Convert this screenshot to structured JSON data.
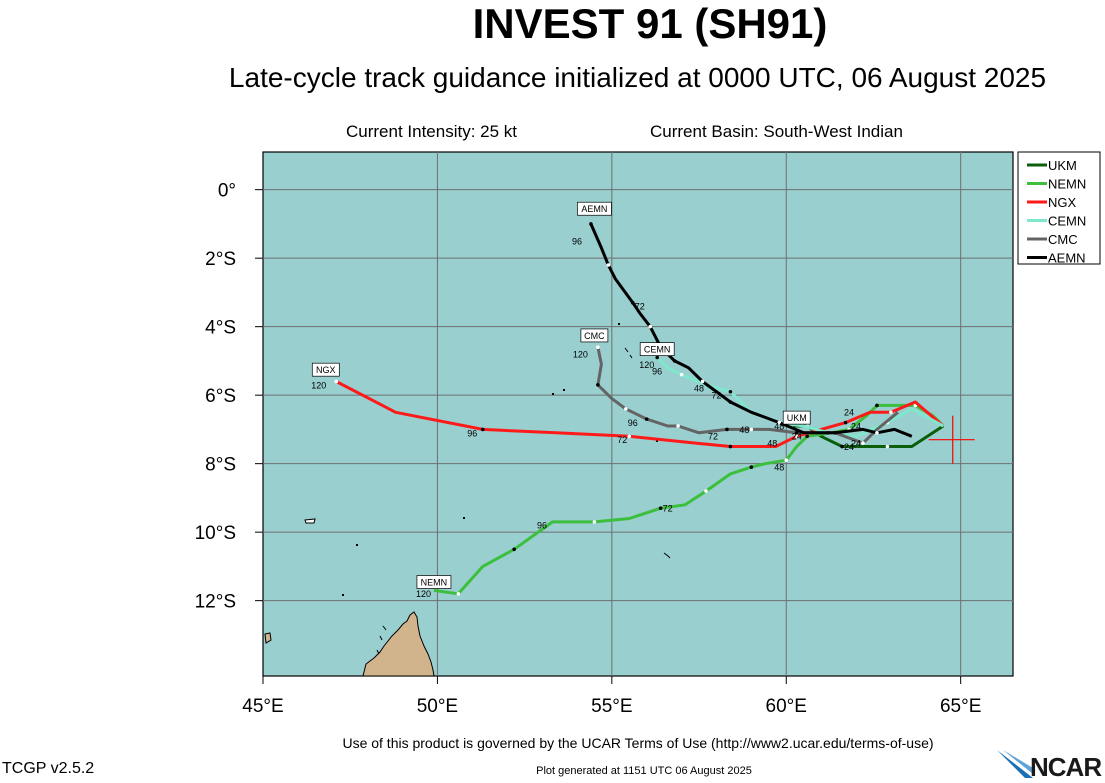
{
  "header": {
    "title": "INVEST 91 (SH91)",
    "subtitle": "Late-cycle track guidance initialized at 0000 UTC, 06 August 2025",
    "intensity": "Current Intensity: 25 kt",
    "basin": "Current Basin: South-West Indian"
  },
  "footer": {
    "terms": "Use of this product is governed by the UCAR Terms of Use (http://www2.ucar.edu/terms-of-use)",
    "version": "TCGP v2.5.2",
    "generated": "Plot generated at 1151 UTC   06 August 2025",
    "logo": "NCAR"
  },
  "colors": {
    "ocean": "#99cfcf",
    "land": "#d2b48c",
    "grid": "#6f6f6f",
    "cross": "#ff0000"
  },
  "chart_data": {
    "type": "line",
    "xlim": [
      45,
      66.5
    ],
    "ylim": [
      -14.2,
      1.1
    ],
    "x_ticks": [
      {
        "value": 45,
        "label": "45°E"
      },
      {
        "value": 50,
        "label": "50°E"
      },
      {
        "value": 55,
        "label": "55°E"
      },
      {
        "value": 60,
        "label": "60°E"
      },
      {
        "value": 65,
        "label": "65°E"
      }
    ],
    "y_ticks": [
      {
        "value": 0,
        "label": "0°"
      },
      {
        "value": -2,
        "label": "2°S"
      },
      {
        "value": -4,
        "label": "4°S"
      },
      {
        "value": -6,
        "label": "6°S"
      },
      {
        "value": -8,
        "label": "8°S"
      },
      {
        "value": -10,
        "label": "10°S"
      },
      {
        "value": -12,
        "label": "12°S"
      }
    ],
    "grid": true,
    "legend_position": "top-right",
    "current_position": {
      "lon": 64.6,
      "lat": -7.3
    },
    "series": [
      {
        "name": "UKM",
        "color": "#0b5e0b",
        "box_label": "UKM",
        "box_at": [
          60.3,
          -6.7
        ],
        "points": [
          [
            64.5,
            -6.9
          ],
          [
            63.6,
            -7.5
          ],
          [
            62.9,
            -7.5
          ],
          [
            62.3,
            -7.5
          ],
          [
            61.6,
            -7.5
          ],
          [
            61.0,
            -7.2
          ],
          [
            60.6,
            -6.9
          ],
          [
            60.2,
            -6.9
          ]
        ]
      },
      {
        "name": "NEMN",
        "color": "#3cbf3c",
        "box_label": "NEMN",
        "box_at": [
          49.9,
          -11.5
        ],
        "points": [
          [
            64.5,
            -6.9
          ],
          [
            64.2,
            -6.6
          ],
          [
            63.7,
            -6.3
          ],
          [
            63.1,
            -6.3
          ],
          [
            62.6,
            -6.3
          ],
          [
            62.3,
            -6.6
          ],
          [
            61.8,
            -7.0
          ],
          [
            61.3,
            -7.1
          ],
          [
            60.6,
            -7.2
          ],
          [
            60.3,
            -7.5
          ],
          [
            60.0,
            -7.9
          ],
          [
            59.4,
            -8.0
          ],
          [
            59.0,
            -8.1
          ],
          [
            58.4,
            -8.3
          ],
          [
            57.7,
            -8.8
          ],
          [
            57.1,
            -9.2
          ],
          [
            56.4,
            -9.3
          ],
          [
            55.5,
            -9.6
          ],
          [
            54.5,
            -9.7
          ],
          [
            53.3,
            -9.7
          ],
          [
            52.2,
            -10.5
          ],
          [
            51.3,
            -11.0
          ],
          [
            50.6,
            -11.8
          ],
          [
            49.9,
            -11.7
          ]
        ],
        "labels": [
          {
            "text": "24",
            "at": [
              61.8,
              -7.6
            ]
          },
          {
            "text": "48",
            "at": [
              59.8,
              -8.2
            ]
          },
          {
            "text": "72",
            "at": [
              56.6,
              -9.4
            ]
          },
          {
            "text": "96",
            "at": [
              53.0,
              -9.9
            ]
          },
          {
            "text": "120",
            "at": [
              49.6,
              -11.9
            ]
          }
        ]
      },
      {
        "name": "NGX",
        "color": "#ff1a1a",
        "box_label": "NGX",
        "box_at": [
          46.8,
          -5.3
        ],
        "points": [
          [
            64.5,
            -6.9
          ],
          [
            63.7,
            -6.2
          ],
          [
            63.0,
            -6.5
          ],
          [
            62.4,
            -6.5
          ],
          [
            61.7,
            -6.8
          ],
          [
            61.0,
            -7.0
          ],
          [
            60.3,
            -7.2
          ],
          [
            59.7,
            -7.5
          ],
          [
            58.4,
            -7.5
          ],
          [
            57.4,
            -7.4
          ],
          [
            55.5,
            -7.2
          ],
          [
            53.4,
            -7.1
          ],
          [
            51.3,
            -7.0
          ],
          [
            48.8,
            -6.5
          ],
          [
            47.1,
            -5.6
          ]
        ],
        "labels": [
          {
            "text": "24",
            "at": [
              60.3,
              -7.3
            ]
          },
          {
            "text": "48",
            "at": [
              59.6,
              -7.5
            ]
          },
          {
            "text": "72",
            "at": [
              55.3,
              -7.4
            ]
          },
          {
            "text": "96",
            "at": [
              51.0,
              -7.2
            ]
          },
          {
            "text": "120",
            "at": [
              46.6,
              -5.8
            ]
          }
        ]
      },
      {
        "name": "CEMN",
        "color": "#7fe8cc",
        "box_label": "CEMN",
        "box_at": [
          56.3,
          -4.7
        ],
        "points": [
          [
            64.5,
            -6.9
          ],
          [
            63.6,
            -6.4
          ],
          [
            62.9,
            -6.8
          ],
          [
            62.0,
            -7.2
          ],
          [
            61.2,
            -7.1
          ],
          [
            60.5,
            -6.9
          ],
          [
            59.8,
            -6.8
          ],
          [
            59.0,
            -6.5
          ],
          [
            58.4,
            -5.9
          ],
          [
            57.7,
            -5.7
          ],
          [
            57.0,
            -5.4
          ],
          [
            56.6,
            -5.2
          ],
          [
            56.3,
            -4.9
          ]
        ],
        "labels": [
          {
            "text": "24",
            "at": [
              62.0,
              -7.0
            ]
          },
          {
            "text": "48",
            "at": [
              57.5,
              -5.9
            ]
          },
          {
            "text": "72",
            "at": [
              58.0,
              -6.1
            ]
          },
          {
            "text": "96",
            "at": [
              56.3,
              -5.4
            ]
          },
          {
            "text": "120",
            "at": [
              56.0,
              -5.2
            ]
          }
        ]
      },
      {
        "name": "CMC",
        "color": "#646464",
        "box_label": "CMC",
        "box_at": [
          54.5,
          -4.3
        ],
        "points": [
          [
            63.2,
            -6.5
          ],
          [
            62.6,
            -7.0
          ],
          [
            62.2,
            -7.4
          ],
          [
            61.4,
            -7.1
          ],
          [
            60.3,
            -7.1
          ],
          [
            59.5,
            -7.0
          ],
          [
            59.0,
            -7.0
          ],
          [
            58.8,
            -7.0
          ],
          [
            58.3,
            -7.0
          ],
          [
            57.5,
            -7.1
          ],
          [
            56.9,
            -6.9
          ],
          [
            56.6,
            -6.9
          ],
          [
            56.0,
            -6.7
          ],
          [
            55.8,
            -6.6
          ],
          [
            55.4,
            -6.4
          ],
          [
            55.0,
            -6.1
          ],
          [
            54.6,
            -5.7
          ],
          [
            54.7,
            -5.1
          ],
          [
            54.6,
            -4.6
          ]
        ],
        "labels": [
          {
            "text": "24",
            "at": [
              62.0,
              -7.5
            ]
          },
          {
            "text": "48",
            "at": [
              58.8,
              -7.1
            ]
          },
          {
            "text": "72",
            "at": [
              57.9,
              -7.3
            ]
          },
          {
            "text": "96",
            "at": [
              55.6,
              -6.9
            ]
          },
          {
            "text": "120",
            "at": [
              54.1,
              -4.9
            ]
          }
        ]
      },
      {
        "name": "AEMN",
        "color": "#000000",
        "box_label": "AEMN",
        "box_at": [
          54.5,
          -0.6
        ],
        "points": [
          [
            63.6,
            -7.2
          ],
          [
            63.1,
            -7.0
          ],
          [
            62.6,
            -7.1
          ],
          [
            62.2,
            -7.0
          ],
          [
            61.4,
            -7.1
          ],
          [
            60.5,
            -7.1
          ],
          [
            59.8,
            -6.8
          ],
          [
            59.0,
            -6.5
          ],
          [
            58.4,
            -6.2
          ],
          [
            58.0,
            -5.9
          ],
          [
            57.6,
            -5.6
          ],
          [
            57.2,
            -5.2
          ],
          [
            56.8,
            -5.0
          ],
          [
            56.4,
            -4.6
          ],
          [
            56.1,
            -4.0
          ],
          [
            55.8,
            -3.6
          ],
          [
            55.6,
            -3.3
          ],
          [
            55.1,
            -2.6
          ],
          [
            54.9,
            -2.2
          ],
          [
            54.7,
            -1.7
          ],
          [
            54.4,
            -1.0
          ]
        ],
        "labels": [
          {
            "text": "24",
            "at": [
              61.8,
              -6.6
            ]
          },
          {
            "text": "48",
            "at": [
              59.8,
              -7.0
            ]
          },
          {
            "text": "72",
            "at": [
              55.8,
              -3.5
            ]
          },
          {
            "text": "96",
            "at": [
              54.0,
              -1.6
            ]
          }
        ]
      }
    ]
  }
}
